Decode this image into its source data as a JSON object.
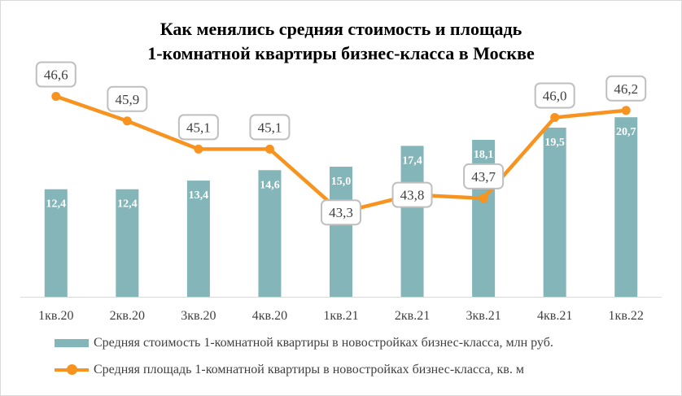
{
  "chart_data": {
    "type": "bar+line",
    "title": [
      "Как менялись средняя стоимость  и площадь",
      "1-комнатной  квартиры бизнес-класса  в Москве"
    ],
    "categories": [
      "1кв.20",
      "2кв.20",
      "3кв.20",
      "4кв.20",
      "1кв.21",
      "2кв.21",
      "3кв.21",
      "4кв.21",
      "1кв.22"
    ],
    "series": [
      {
        "name": "Средняя стоимость 1-комнатной квартиры в новостройках бизнес-класса, млн руб.",
        "type": "bar",
        "axis": "primary",
        "color": "#84b5b9",
        "values": [
          12.4,
          12.4,
          13.4,
          14.6,
          15.0,
          17.4,
          18.1,
          19.5,
          20.7
        ],
        "labels": [
          "12,4",
          "12,4",
          "13,4",
          "14,6",
          "15,0",
          "17,4",
          "18,1",
          "19,5",
          "20,7"
        ]
      },
      {
        "name": "Средняя площадь 1-комнатной квартиры в новостройках бизнес-класса, кв. м",
        "type": "line",
        "axis": "secondary",
        "color": "#f7931e",
        "values": [
          46.6,
          45.9,
          45.1,
          45.1,
          43.3,
          43.8,
          43.7,
          46.0,
          46.2
        ],
        "labels": [
          "46,6",
          "45,9",
          "45,1",
          "45,1",
          "43,3",
          "43,8",
          "43,7",
          "46,0",
          "46,2"
        ],
        "label_placement": [
          "above",
          "above",
          "above",
          "above",
          "center",
          "center",
          "above",
          "above",
          "above"
        ]
      }
    ],
    "ylim": [
      0,
      30
    ],
    "ylim2": [
      40.9,
      48.3
    ],
    "grid": false,
    "legend_placement": "bottom"
  }
}
